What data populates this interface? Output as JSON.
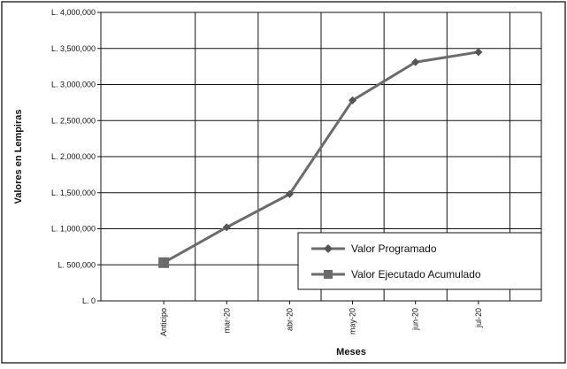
{
  "chart_data": {
    "type": "line",
    "xlabel": "Meses",
    "ylabel": "Valores en Lempiras",
    "categories": [
      "Anticipo",
      "mar-20",
      "abr-20",
      "may-20",
      "jun-20",
      "jul-20"
    ],
    "y_ticks": [
      "L. 0",
      "L. 500,000",
      "L. 1,000,000",
      "L. 1,500,000",
      "L. 2,000,000",
      "L. 2,500,000",
      "L. 3,000,000",
      "L. 3,500,000",
      "L. 4,000,000"
    ],
    "ylim": [
      0,
      4000000
    ],
    "grid": true,
    "legend_position": "bottom-right",
    "series": [
      {
        "name": "Valor Programado",
        "marker": "diamond",
        "color": "#6b6b6b",
        "values": [
          530000,
          1020000,
          1480000,
          2780000,
          3310000,
          3450000
        ]
      },
      {
        "name": "Valor Ejecutado Acumulado",
        "marker": "square",
        "color": "#6b6b6b",
        "values": [
          530000,
          null,
          null,
          null,
          null,
          null
        ]
      }
    ]
  }
}
